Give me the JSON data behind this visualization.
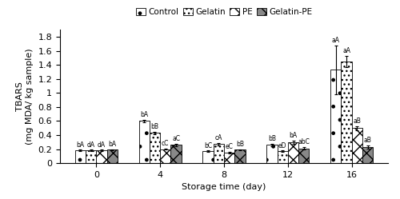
{
  "storage_times": [
    0,
    4,
    8,
    12,
    16
  ],
  "groups": [
    "Control",
    "Gelatin",
    "PE",
    "Gelatin-PE"
  ],
  "values": {
    "Control": [
      0.18,
      0.6,
      0.17,
      0.26,
      1.33
    ],
    "Gelatin": [
      0.18,
      0.43,
      0.27,
      0.17,
      1.45
    ],
    "PE": [
      0.18,
      0.2,
      0.15,
      0.3,
      0.5
    ],
    "Gelatin-PE": [
      0.19,
      0.26,
      0.19,
      0.21,
      0.23
    ]
  },
  "errors": {
    "Control": [
      0.01,
      0.02,
      0.01,
      0.02,
      0.35
    ],
    "Gelatin": [
      0.01,
      0.02,
      0.02,
      0.01,
      0.08
    ],
    "PE": [
      0.01,
      0.01,
      0.01,
      0.02,
      0.03
    ],
    "Gelatin-PE": [
      0.01,
      0.02,
      0.01,
      0.02,
      0.02
    ]
  },
  "annotations": {
    "Control": [
      "bA",
      "bA",
      "bC",
      "bB",
      "aA"
    ],
    "Gelatin": [
      "dA",
      "bB",
      "cA",
      "eD",
      "aA"
    ],
    "PE": [
      "dA",
      "cC",
      "eC",
      "bA",
      "aB"
    ],
    "Gelatin-PE": [
      "bA",
      "aC",
      "bB",
      "abC",
      "aB"
    ]
  },
  "ylabel": "TBARS\n(mg MDA/ kg sample)",
  "xlabel": "Storage time (day)",
  "ylim": [
    0,
    1.9
  ],
  "yticks": [
    0,
    0.2,
    0.4,
    0.6,
    0.8,
    1.0,
    1.2,
    1.4,
    1.6,
    1.8
  ],
  "bar_width": 0.15,
  "annotation_fontsize": 5.5,
  "axis_fontsize": 8,
  "legend_fontsize": 7.5,
  "tick_fontsize": 8
}
